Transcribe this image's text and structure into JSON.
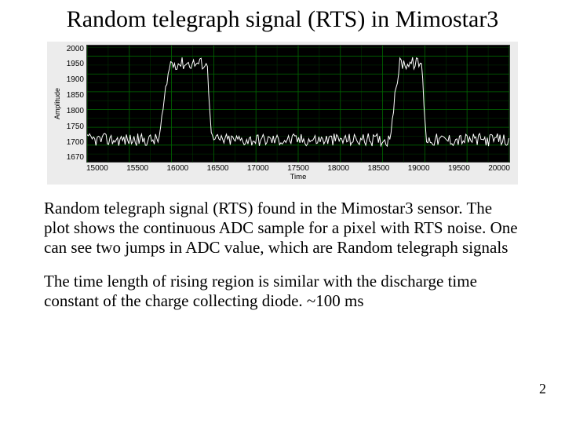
{
  "title": "Random telegraph signal (RTS) in Mimostar3",
  "chart": {
    "type": "line",
    "ylabel": "Amplitude",
    "xlabel": "Time",
    "yticks": [
      "2000",
      "1950",
      "1900",
      "1850",
      "1800",
      "1750",
      "1700",
      "1670"
    ],
    "ylim": [
      1670,
      2000
    ],
    "xticks": [
      "15000",
      "15500",
      "16000",
      "16500",
      "17000",
      "17500",
      "18000",
      "18500",
      "19000",
      "19500",
      "20000"
    ],
    "xlim": [
      15000,
      20000
    ],
    "background_color": "#000000",
    "grid_color": "#006600",
    "grid_minor_color": "#003800",
    "trace_color": "#ffffff",
    "panel_bg": "#ececec",
    "signal": {
      "baseline": 1735,
      "high": 1950,
      "noise_amp": 18,
      "pulses": [
        {
          "rise_start": 15850,
          "rise_end": 15980,
          "fall_start": 16420,
          "fall_end": 16480
        },
        {
          "rise_start": 18580,
          "rise_end": 18700,
          "fall_start": 18960,
          "fall_end": 19020
        }
      ]
    }
  },
  "paragraph1": "Random telegraph signal (RTS) found in the Mimostar3 sensor. The plot shows the continuous ADC sample for a pixel with  RTS noise. One can see two jumps in ADC value, which are  Random telegraph signals",
  "paragraph2": "The time length of rising region is similar with the discharge time constant of the charge collecting diode. ~100 ms",
  "page_number": "2"
}
